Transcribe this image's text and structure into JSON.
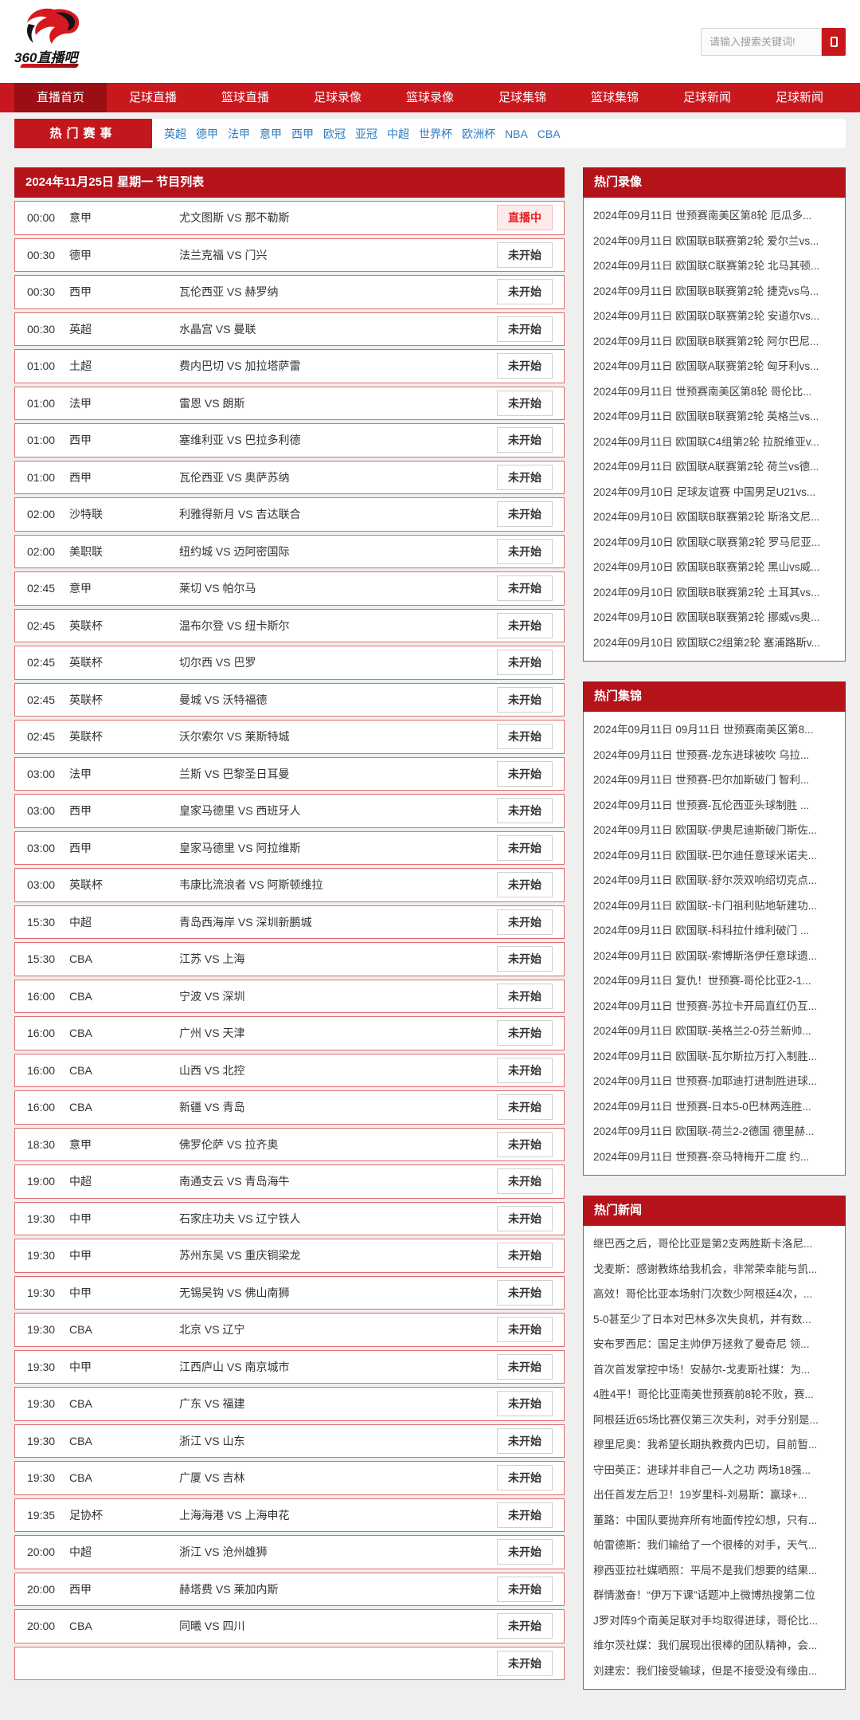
{
  "header": {
    "logo_text": "360直播吧",
    "search": {
      "placeholder": "请输入搜索关键词!"
    }
  },
  "nav": {
    "items": [
      {
        "label": "直播首页",
        "active": true
      },
      {
        "label": "足球直播",
        "active": false
      },
      {
        "label": "篮球直播",
        "active": false
      },
      {
        "label": "足球录像",
        "active": false
      },
      {
        "label": "篮球录像",
        "active": false
      },
      {
        "label": "足球集锦",
        "active": false
      },
      {
        "label": "篮球集锦",
        "active": false
      },
      {
        "label": "足球新闻",
        "active": false
      },
      {
        "label": "足球新闻",
        "active": false
      }
    ]
  },
  "hot_events": {
    "title": "热门赛事",
    "links": [
      "英超",
      "德甲",
      "法甲",
      "意甲",
      "西甲",
      "欧冠",
      "亚冠",
      "中超",
      "世界杯",
      "欧洲杯",
      "NBA",
      "CBA"
    ]
  },
  "colors": {
    "nav_red": "#c9171e",
    "active_tab_red": "#9b0e13",
    "panel_red": "#b5121a",
    "row_border": "#e06c6c",
    "live_text": "#e71d25",
    "link_blue": "#2d7cc1"
  },
  "schedule": {
    "title": "2024年11月25日 星期一 节目列表",
    "rows": [
      {
        "time": "00:00",
        "league": "意甲",
        "match": "尤文图斯 VS 那不勒斯",
        "status": "直播中",
        "live": true
      },
      {
        "time": "00:30",
        "league": "德甲",
        "match": "法兰克福 VS 门兴",
        "status": "未开始",
        "live": false
      },
      {
        "time": "00:30",
        "league": "西甲",
        "match": "瓦伦西亚 VS 赫罗纳",
        "status": "未开始",
        "live": false
      },
      {
        "time": "00:30",
        "league": "英超",
        "match": "水晶宫 VS 曼联",
        "status": "未开始",
        "live": false
      },
      {
        "time": "01:00",
        "league": "土超",
        "match": "费内巴切 VS 加拉塔萨雷",
        "status": "未开始",
        "live": false
      },
      {
        "time": "01:00",
        "league": "法甲",
        "match": "雷恩 VS 朗斯",
        "status": "未开始",
        "live": false
      },
      {
        "time": "01:00",
        "league": "西甲",
        "match": "塞维利亚 VS 巴拉多利德",
        "status": "未开始",
        "live": false
      },
      {
        "time": "01:00",
        "league": "西甲",
        "match": "瓦伦西亚 VS 奥萨苏纳",
        "status": "未开始",
        "live": false
      },
      {
        "time": "02:00",
        "league": "沙特联",
        "match": "利雅得新月 VS 吉达联合",
        "status": "未开始",
        "live": false
      },
      {
        "time": "02:00",
        "league": "美职联",
        "match": "纽约城 VS 迈阿密国际",
        "status": "未开始",
        "live": false
      },
      {
        "time": "02:45",
        "league": "意甲",
        "match": "莱切 VS 帕尔马",
        "status": "未开始",
        "live": false
      },
      {
        "time": "02:45",
        "league": "英联杯",
        "match": "温布尔登 VS 纽卡斯尔",
        "status": "未开始",
        "live": false
      },
      {
        "time": "02:45",
        "league": "英联杯",
        "match": "切尔西 VS 巴罗",
        "status": "未开始",
        "live": false
      },
      {
        "time": "02:45",
        "league": "英联杯",
        "match": "曼城 VS 沃特福德",
        "status": "未开始",
        "live": false
      },
      {
        "time": "02:45",
        "league": "英联杯",
        "match": "沃尔索尔 VS 莱斯特城",
        "status": "未开始",
        "live": false
      },
      {
        "time": "03:00",
        "league": "法甲",
        "match": "兰斯 VS 巴黎圣日耳曼",
        "status": "未开始",
        "live": false
      },
      {
        "time": "03:00",
        "league": "西甲",
        "match": "皇家马德里 VS 西班牙人",
        "status": "未开始",
        "live": false
      },
      {
        "time": "03:00",
        "league": "西甲",
        "match": "皇家马德里 VS 阿拉维斯",
        "status": "未开始",
        "live": false
      },
      {
        "time": "03:00",
        "league": "英联杯",
        "match": "韦康比流浪者 VS 阿斯顿维拉",
        "status": "未开始",
        "live": false
      },
      {
        "time": "15:30",
        "league": "中超",
        "match": "青岛西海岸 VS 深圳新鹏城",
        "status": "未开始",
        "live": false
      },
      {
        "time": "15:30",
        "league": "CBA",
        "match": "江苏 VS 上海",
        "status": "未开始",
        "live": false
      },
      {
        "time": "16:00",
        "league": "CBA",
        "match": "宁波 VS 深圳",
        "status": "未开始",
        "live": false
      },
      {
        "time": "16:00",
        "league": "CBA",
        "match": "广州 VS 天津",
        "status": "未开始",
        "live": false
      },
      {
        "time": "16:00",
        "league": "CBA",
        "match": "山西 VS 北控",
        "status": "未开始",
        "live": false
      },
      {
        "time": "16:00",
        "league": "CBA",
        "match": "新疆 VS 青岛",
        "status": "未开始",
        "live": false
      },
      {
        "time": "18:30",
        "league": "意甲",
        "match": "佛罗伦萨 VS 拉齐奥",
        "status": "未开始",
        "live": false
      },
      {
        "time": "19:00",
        "league": "中超",
        "match": "南通支云 VS 青岛海牛",
        "status": "未开始",
        "live": false
      },
      {
        "time": "19:30",
        "league": "中甲",
        "match": "石家庄功夫 VS 辽宁铁人",
        "status": "未开始",
        "live": false
      },
      {
        "time": "19:30",
        "league": "中甲",
        "match": "苏州东吴 VS 重庆铜梁龙",
        "status": "未开始",
        "live": false
      },
      {
        "time": "19:30",
        "league": "中甲",
        "match": "无锡吴钩 VS 佛山南狮",
        "status": "未开始",
        "live": false
      },
      {
        "time": "19:30",
        "league": "CBA",
        "match": "北京 VS 辽宁",
        "status": "未开始",
        "live": false
      },
      {
        "time": "19:30",
        "league": "中甲",
        "match": "江西庐山 VS 南京城市",
        "status": "未开始",
        "live": false
      },
      {
        "time": "19:30",
        "league": "CBA",
        "match": "广东 VS 福建",
        "status": "未开始",
        "live": false
      },
      {
        "time": "19:30",
        "league": "CBA",
        "match": "浙江 VS 山东",
        "status": "未开始",
        "live": false
      },
      {
        "time": "19:30",
        "league": "CBA",
        "match": "广厦 VS 吉林",
        "status": "未开始",
        "live": false
      },
      {
        "time": "19:35",
        "league": "足协杯",
        "match": "上海海港 VS 上海申花",
        "status": "未开始",
        "live": false
      },
      {
        "time": "20:00",
        "league": "中超",
        "match": "浙江 VS 沧州雄狮",
        "status": "未开始",
        "live": false
      },
      {
        "time": "20:00",
        "league": "西甲",
        "match": "赫塔费 VS 莱加内斯",
        "status": "未开始",
        "live": false
      },
      {
        "time": "20:00",
        "league": "CBA",
        "match": "同曦 VS 四川",
        "status": "未开始",
        "live": false
      },
      {
        "time": "",
        "league": "",
        "match": "",
        "status": "未开始",
        "live": false
      }
    ]
  },
  "sidebar": {
    "panels": [
      {
        "title": "热门录像",
        "items": [
          "2024年09月11日 世预赛南美区第8轮 厄瓜多...",
          "2024年09月11日 欧国联B联赛第2轮 爱尔兰vs...",
          "2024年09月11日 欧国联C联赛第2轮 北马其顿...",
          "2024年09月11日 欧国联B联赛第2轮 捷克vs乌...",
          "2024年09月11日 欧国联D联赛第2轮 安道尔vs...",
          "2024年09月11日 欧国联B联赛第2轮 阿尔巴尼...",
          "2024年09月11日 欧国联A联赛第2轮 匈牙利vs...",
          "2024年09月11日 世预赛南美区第8轮 哥伦比...",
          "2024年09月11日 欧国联B联赛第2轮 英格兰vs...",
          "2024年09月11日 欧国联C4组第2轮 拉脱维亚v...",
          "2024年09月11日 欧国联A联赛第2轮 荷兰vs德...",
          "2024年09月10日 足球友谊赛 中国男足U21vs...",
          "2024年09月10日 欧国联B联赛第2轮 斯洛文尼...",
          "2024年09月10日 欧国联C联赛第2轮 罗马尼亚...",
          "2024年09月10日 欧国联B联赛第2轮 黑山vs威...",
          "2024年09月10日 欧国联B联赛第2轮 土耳其vs...",
          "2024年09月10日 欧国联B联赛第2轮 挪威vs奥...",
          "2024年09月10日 欧国联C2组第2轮 塞浦路斯v..."
        ]
      },
      {
        "title": "热门集锦",
        "items": [
          "2024年09月11日 09月11日 世预赛南美区第8...",
          "2024年09月11日 世预赛-龙东进球被吹 乌拉...",
          "2024年09月11日 世预赛-巴尔加斯破门 智利...",
          "2024年09月11日 世预赛-瓦伦西亚头球制胜 ...",
          "2024年09月11日 欧国联-伊奥尼迪斯破门斯佐...",
          "2024年09月11日 欧国联-巴尔迪任意球米诺夫...",
          "2024年09月11日 欧国联-舒尔茨双响绍切克点...",
          "2024年09月11日 欧国联-卡门祖利贴地斩建功...",
          "2024年09月11日 欧国联-科科拉什维利破门 ...",
          "2024年09月11日 欧国联-索博斯洛伊任意球遗...",
          "2024年09月11日 复仇！世预赛-哥伦比亚2-1...",
          "2024年09月11日 世预赛-苏拉卡开局直红仍互...",
          "2024年09月11日 欧国联-英格兰2-0芬兰新帅...",
          "2024年09月11日 欧国联-瓦尔斯拉万打入制胜...",
          "2024年09月11日 世预赛-加耶迪打进制胜进球...",
          "2024年09月11日 世预赛-日本5-0巴林两连胜...",
          "2024年09月11日 欧国联-荷兰2-2德国 德里赫...",
          "2024年09月11日 世预赛-奈马特梅开二度 约..."
        ]
      },
      {
        "title": "热门新闻",
        "items": [
          "继巴西之后，哥伦比亚是第2支两胜斯卡洛尼...",
          "戈麦斯：感谢教练给我机会，非常荣幸能与凯...",
          "高效！哥伦比亚本场射门次数少阿根廷4次，...",
          "5-0甚至少了日本对巴林多次失良机，并有数...",
          "安布罗西尼：国足主帅伊万拯救了曼奇尼 领...",
          "首次首发掌控中场！安赫尔-戈麦斯社媒：为...",
          "4胜4平！哥伦比亚南美世预赛前8轮不败，赛...",
          "阿根廷近65场比赛仅第三次失利，对手分别是...",
          "穆里尼奥：我希望长期执教费内巴切，目前暂...",
          "守田英正：进球并非自己一人之功 两场18强...",
          "出任首发左后卫！19岁里科-刘易斯：赢球+...",
          "董路：中国队要抛弃所有地面传控幻想，只有...",
          "帕雷德斯：我们输给了一个很棒的对手，天气...",
          "穆西亚拉社媒晒照：平局不是我们想要的结果...",
          "群情激奋！“伊万下课”话题冲上微博热搜第二位",
          "J罗对阵9个南美足联对手均取得进球，哥伦比...",
          "维尔茨社媒：我们展现出很棒的团队精神，会...",
          "刘建宏：我们接受输球，但是不接受没有缘由..."
        ]
      }
    ]
  }
}
